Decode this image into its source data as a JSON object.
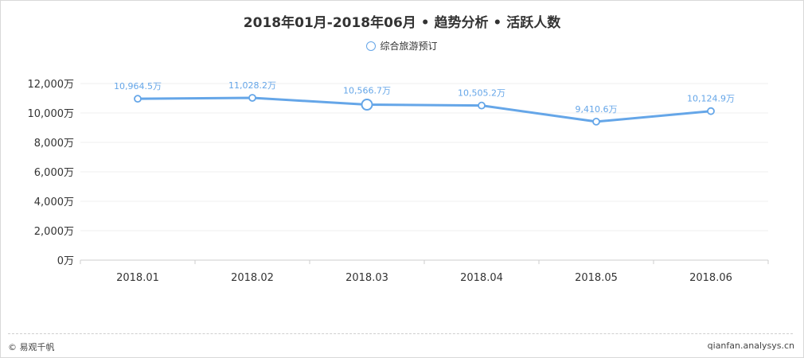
{
  "colors": {
    "line": "#65a6e8",
    "grid": "#efefef",
    "axis": "#cccccc",
    "text": "#333333",
    "label": "#65a6e8"
  },
  "header": {
    "title": "2018年01月-2018年06月 • 趋势分析 • 活跃人数"
  },
  "legend": {
    "items": [
      {
        "label": "综合旅游预订",
        "icon": "hollow-circle-icon"
      }
    ]
  },
  "chart_data": {
    "type": "line",
    "title": "2018年01月-2018年06月 • 趋势分析 • 活跃人数",
    "categories": [
      "2018.01",
      "2018.02",
      "2018.03",
      "2018.04",
      "2018.05",
      "2018.06"
    ],
    "series": [
      {
        "name": "综合旅游预订",
        "values": [
          10964.5,
          11028.2,
          10566.7,
          10505.2,
          9410.6,
          10124.9
        ],
        "labels": [
          "10,964.5万",
          "11,028.2万",
          "10,566.7万",
          "10,505.2万",
          "9,410.6万",
          "10,124.9万"
        ]
      }
    ],
    "y_ticks": [
      0,
      2000,
      4000,
      6000,
      8000,
      10000,
      12000
    ],
    "y_tick_labels": [
      "0万",
      "2,000万",
      "4,000万",
      "6,000万",
      "8,000万",
      "10,000万",
      "12,000万"
    ],
    "ylim": [
      0,
      12000
    ],
    "highlighted_index": 2,
    "grid": true,
    "legend_position": "top-center"
  },
  "footer": {
    "left": "© 易观千帆",
    "right": "qianfan.analysys.cn"
  }
}
